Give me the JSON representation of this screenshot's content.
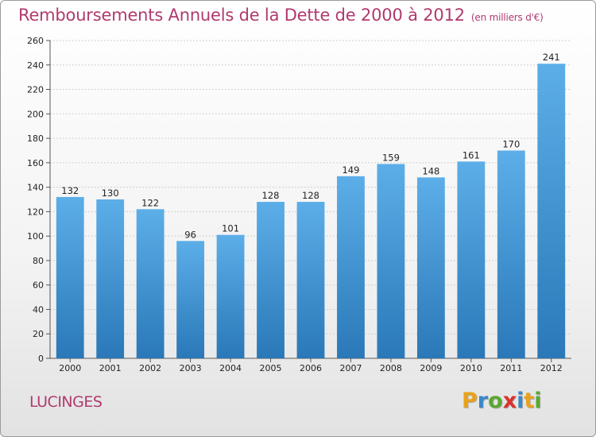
{
  "header": {
    "title": "Remboursements Annuels de la Dette de 2000 à 2012",
    "subtitle": "(en milliers d'€)"
  },
  "footer": {
    "city": "LUCINGES",
    "brand_letters": [
      {
        "ch": "P",
        "color": "#e8a21c"
      },
      {
        "ch": "r",
        "color": "#3a87c9"
      },
      {
        "ch": "o",
        "color": "#5aa832"
      },
      {
        "ch": "x",
        "color": "#d9322b"
      },
      {
        "ch": "i",
        "color": "#3a87c9"
      },
      {
        "ch": "t",
        "color": "#e8a21c"
      },
      {
        "ch": "i",
        "color": "#5aa832"
      }
    ]
  },
  "colors": {
    "accent": "#b03a6e",
    "bar_top": "#5caee8",
    "bar_bottom": "#2a78b8",
    "grid": "#d0d0d0"
  },
  "chart_data": {
    "type": "bar",
    "title": "Remboursements Annuels de la Dette de 2000 à 2012",
    "subtitle": "(en milliers d'€)",
    "xlabel": "",
    "ylabel": "",
    "categories": [
      "2000",
      "2001",
      "2002",
      "2003",
      "2004",
      "2005",
      "2006",
      "2007",
      "2008",
      "2009",
      "2010",
      "2011",
      "2012"
    ],
    "values": [
      132,
      130,
      122,
      96,
      101,
      128,
      128,
      149,
      159,
      148,
      161,
      170,
      241
    ],
    "ylim": [
      0,
      260
    ],
    "yticks": [
      0,
      20,
      40,
      60,
      80,
      100,
      120,
      140,
      160,
      180,
      200,
      220,
      240,
      260
    ],
    "grid": true,
    "legend": "none"
  }
}
